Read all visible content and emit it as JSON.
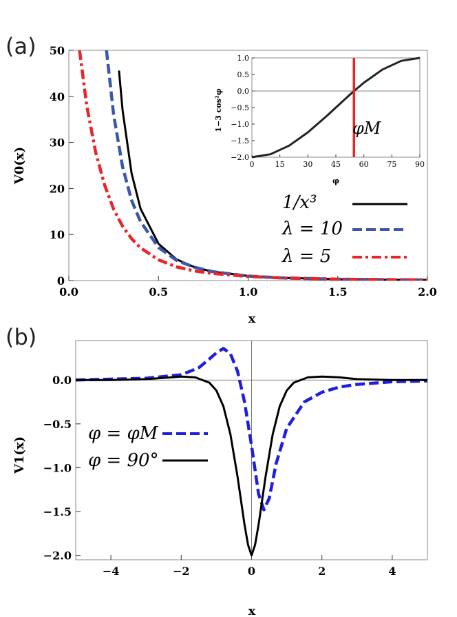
{
  "chart_data": [
    {
      "panel_label": "(a)",
      "type": "line",
      "xlabel": "x",
      "ylabel": "V0(x)",
      "xlim": [
        0,
        2
      ],
      "ylim": [
        0,
        50
      ],
      "x_ticks": [
        "0.0",
        "0.5",
        "1.0",
        "1.5",
        "2.0"
      ],
      "y_ticks": [
        "0",
        "10",
        "20",
        "30",
        "40",
        "50"
      ],
      "series": [
        {
          "name": "1/x³",
          "color": "#000000",
          "style": "solid",
          "x": [
            0.28,
            0.3,
            0.35,
            0.4,
            0.5,
            0.6,
            0.7,
            0.8,
            1.0,
            1.2,
            1.5,
            1.8,
            2.0
          ],
          "y": [
            45.6,
            37.0,
            23.3,
            15.6,
            8.0,
            4.63,
            2.92,
            1.95,
            1.0,
            0.58,
            0.3,
            0.17,
            0.13
          ]
        },
        {
          "name": "λ = 10",
          "color": "#3a58a8",
          "style": "dashed",
          "x": [
            0.21,
            0.25,
            0.3,
            0.35,
            0.4,
            0.5,
            0.6,
            0.7,
            0.8,
            1.0,
            1.2,
            1.5,
            2.0
          ],
          "y": [
            50.0,
            36.0,
            24.7,
            17.4,
            12.8,
            7.2,
            4.4,
            2.9,
            1.95,
            0.97,
            0.57,
            0.3,
            0.13
          ]
        },
        {
          "name": "λ = 5",
          "color": "#e8262a",
          "style": "dashdot",
          "x": [
            0.06,
            0.1,
            0.15,
            0.2,
            0.25,
            0.3,
            0.35,
            0.4,
            0.5,
            0.6,
            0.7,
            0.8,
            1.0,
            1.2,
            1.5,
            2.0
          ],
          "y": [
            50.0,
            38.0,
            27.8,
            20.7,
            15.5,
            11.8,
            9.1,
            7.1,
            4.5,
            3.0,
            2.1,
            1.55,
            0.9,
            0.55,
            0.3,
            0.13
          ]
        }
      ],
      "legend_position": "bottom-right",
      "inset": {
        "type": "line",
        "xlabel": "φ",
        "ylabel": "1−3 cos²φ",
        "xlim": [
          0,
          90
        ],
        "ylim": [
          -2,
          1
        ],
        "x_ticks": [
          "0",
          "15",
          "30",
          "45",
          "60",
          "75",
          "90"
        ],
        "y_ticks": [
          "1.0",
          "0.5",
          "0.0",
          "−0.5",
          "−1.0",
          "−1.5",
          "−2.0"
        ],
        "series_color": "#222222",
        "x": [
          0,
          10,
          20,
          30,
          40,
          50,
          54.7,
          60,
          70,
          80,
          90
        ],
        "y": [
          -2.0,
          -1.91,
          -1.65,
          -1.25,
          -0.76,
          -0.24,
          0.0,
          0.25,
          0.65,
          0.91,
          1.0
        ],
        "marker_line": {
          "x": 54.7,
          "label": "φM",
          "color": "#e8262a"
        }
      }
    },
    {
      "panel_label": "(b)",
      "type": "line",
      "xlabel": "x",
      "ylabel": "V1(x)",
      "xlim": [
        -5,
        5
      ],
      "ylim": [
        -2.05,
        0.45
      ],
      "x_ticks": [
        "−4",
        "−2",
        "0",
        "2",
        "4"
      ],
      "y_ticks": [
        "0.0",
        "−0.5",
        "−1.0",
        "−1.5",
        "−2.0"
      ],
      "series": [
        {
          "name": "φ = φM",
          "color": "#1f1fe0",
          "style": "dashed",
          "x": [
            -5,
            -4,
            -3,
            -2,
            -1.5,
            -1.2,
            -1.0,
            -0.8,
            -0.6,
            -0.4,
            -0.2,
            0,
            0.2,
            0.35,
            0.5,
            0.7,
            1.0,
            1.5,
            2.0,
            2.5,
            3,
            4,
            5
          ],
          "y": [
            0.0,
            0.01,
            0.02,
            0.06,
            0.14,
            0.24,
            0.31,
            0.36,
            0.3,
            0.1,
            -0.25,
            -0.75,
            -1.3,
            -1.48,
            -1.35,
            -0.95,
            -0.55,
            -0.25,
            -0.14,
            -0.08,
            -0.05,
            -0.02,
            -0.01
          ]
        },
        {
          "name": "φ = 90°",
          "color": "#000000",
          "style": "solid",
          "x": [
            -5,
            -4,
            -3,
            -2,
            -1.6,
            -1.2,
            -1.0,
            -0.8,
            -0.6,
            -0.4,
            -0.2,
            -0.1,
            0,
            0.1,
            0.2,
            0.4,
            0.6,
            0.8,
            1.0,
            1.2,
            1.6,
            2.0,
            2.5,
            3,
            4,
            5
          ],
          "y": [
            0.0,
            0.0,
            0.01,
            0.04,
            0.03,
            -0.03,
            -0.12,
            -0.3,
            -0.62,
            -1.1,
            -1.65,
            -1.88,
            -2.0,
            -1.88,
            -1.65,
            -1.1,
            -0.62,
            -0.3,
            -0.12,
            -0.03,
            0.03,
            0.04,
            0.03,
            0.01,
            0.0,
            0.0
          ]
        }
      ],
      "legend_position": "left"
    }
  ]
}
